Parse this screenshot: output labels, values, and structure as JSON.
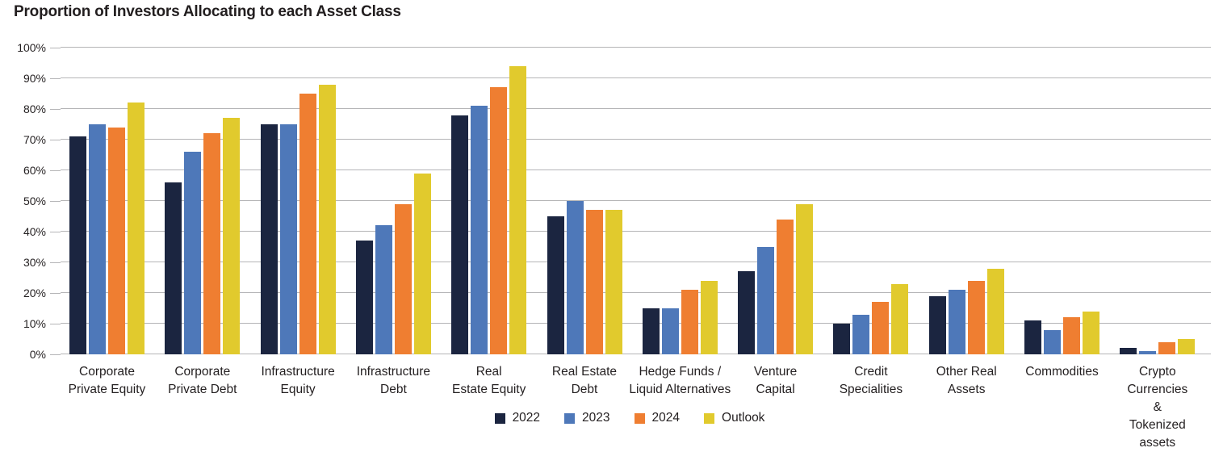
{
  "title": "Proportion of Investors Allocating to each Asset Class",
  "chart_data": {
    "type": "bar",
    "title": "Proportion of Investors Allocating to each Asset Class",
    "xlabel": "",
    "ylabel": "",
    "ylim": [
      0,
      100
    ],
    "ytick_step": 10,
    "ytick_labels": [
      "0%",
      "10%",
      "20%",
      "30%",
      "40%",
      "50%",
      "60%",
      "70%",
      "80%",
      "90%",
      "100%"
    ],
    "grid": true,
    "legend_position": "bottom",
    "categories": [
      "Corporate\nPrivate Equity",
      "Corporate\nPrivate Debt",
      "Infrastructure\nEquity",
      "Infrastructure\nDebt",
      "Real\nEstate Equity",
      "Real Estate\nDebt",
      "Hedge Funds /\nLiquid Alternatives",
      "Venture\nCapital",
      "Credit\nSpecialities",
      "Other Real\nAssets",
      "Commodities",
      "Crypto\nCurrencies &\nTokenized assets"
    ],
    "series": [
      {
        "name": "2022",
        "color": "#1b2540",
        "values": [
          71,
          56,
          75,
          37,
          78,
          45,
          15,
          27,
          10,
          19,
          11,
          2
        ]
      },
      {
        "name": "2023",
        "color": "#4e78b9",
        "values": [
          75,
          66,
          75,
          42,
          81,
          50,
          15,
          35,
          13,
          21,
          8,
          1
        ]
      },
      {
        "name": "2024",
        "color": "#ef7e31",
        "values": [
          74,
          72,
          85,
          49,
          87,
          47,
          21,
          44,
          17,
          24,
          12,
          4
        ]
      },
      {
        "name": "Outlook",
        "color": "#e1ca2d",
        "values": [
          82,
          77,
          88,
          59,
          94,
          47,
          24,
          49,
          23,
          28,
          14,
          5
        ]
      }
    ],
    "colors": {
      "gridline": "#b5b5b7",
      "axis_text": "#231f20",
      "title_text": "#221e1f",
      "background": "#ffffff"
    }
  }
}
